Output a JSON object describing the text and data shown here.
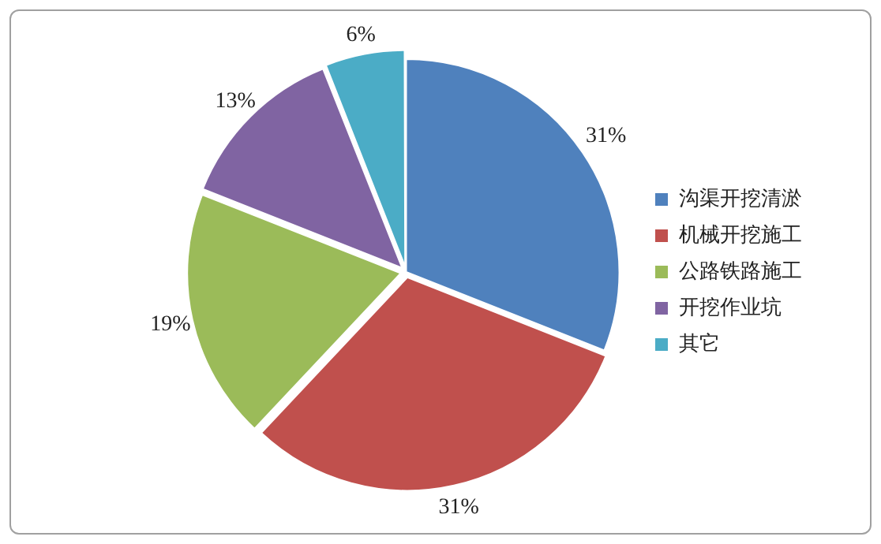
{
  "chart_data": {
    "type": "pie",
    "categories": [
      "沟渠开挖清淤",
      "机械开挖施工",
      "公路铁路施工",
      "开挖作业坑",
      "其它"
    ],
    "values": [
      31,
      31,
      19,
      13,
      6
    ],
    "colors": [
      "#4f81bd",
      "#c0504d",
      "#9bbb59",
      "#8064a2",
      "#4bacc6"
    ],
    "value_labels": [
      "31%",
      "31%",
      "19%",
      "13%",
      "6%"
    ],
    "legend": "right"
  }
}
